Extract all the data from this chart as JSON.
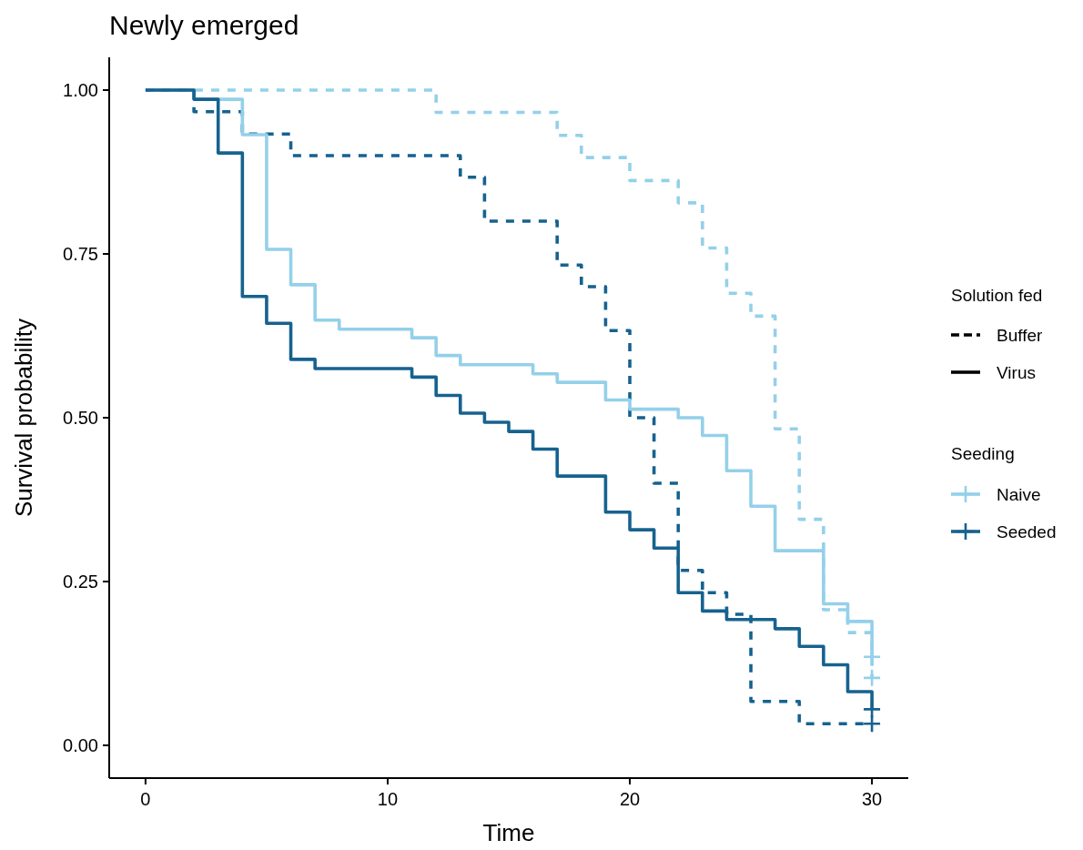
{
  "chart_data": {
    "type": "step",
    "title": "Newly emerged",
    "xlabel": "Time",
    "ylabel": "Survival probability",
    "legend_title": "Solution fed",
    "annotations": [
      "Buffer",
      "Virus",
      "Seeding"
    ],
    "legend": "right",
    "xlim": [
      -1.5,
      31.5
    ],
    "ylim": [
      -0.05,
      1.05
    ],
    "xticks": [
      0,
      10,
      20,
      30
    ],
    "yticks": [
      {
        "value": 0,
        "label": "0.00"
      },
      {
        "value": 0.25,
        "label": "0.25"
      },
      {
        "value": 0.5,
        "label": "0.50"
      },
      {
        "value": 0.75,
        "label": "0.75"
      },
      {
        "value": 1,
        "label": "1.00"
      }
    ],
    "grid": false,
    "series": [
      {
        "color": "#94d0ea",
        "line_style": "dashed",
        "x": [
          0,
          12,
          17,
          18,
          20,
          22,
          23,
          24,
          25,
          26,
          27,
          28,
          29,
          30
        ],
        "values": [
          1,
          0.966,
          0.931,
          0.897,
          0.862,
          0.828,
          0.759,
          0.69,
          0.655,
          0.483,
          0.345,
          0.207,
          0.172,
          0.103
        ]
      },
      {
        "color": "#16628f",
        "line_style": "dashed",
        "x": [
          0,
          2,
          4,
          6,
          13,
          14,
          17,
          18,
          19,
          20,
          21,
          22,
          23,
          24,
          25,
          27,
          30
        ],
        "values": [
          1,
          0.967,
          0.933,
          0.9,
          0.867,
          0.8,
          0.733,
          0.7,
          0.633,
          0.5,
          0.4,
          0.267,
          0.233,
          0.2,
          0.067,
          0.033,
          0.033
        ]
      },
      {
        "color": "#94d0ea",
        "line_style": "solid",
        "x": [
          0,
          2,
          4,
          5,
          6,
          7,
          8,
          11,
          12,
          13,
          16,
          17,
          19,
          20,
          22,
          23,
          24,
          25,
          26,
          28,
          29,
          30
        ],
        "values": [
          1,
          0.986,
          0.932,
          0.757,
          0.703,
          0.649,
          0.635,
          0.622,
          0.595,
          0.581,
          0.567,
          0.554,
          0.527,
          0.513,
          0.5,
          0.473,
          0.419,
          0.365,
          0.297,
          0.216,
          0.189,
          0.135
        ]
      },
      {
        "color": "#16628f",
        "line_style": "solid",
        "x": [
          0,
          2,
          3,
          4,
          5,
          6,
          7,
          11,
          12,
          13,
          14,
          15,
          16,
          17,
          19,
          20,
          21,
          22,
          23,
          24,
          26,
          27,
          28,
          29,
          30
        ],
        "values": [
          1,
          0.986,
          0.904,
          0.685,
          0.644,
          0.589,
          0.575,
          0.562,
          0.534,
          0.507,
          0.493,
          0.479,
          0.452,
          0.411,
          0.356,
          0.329,
          0.301,
          0.233,
          0.205,
          0.192,
          0.178,
          0.151,
          0.123,
          0.082,
          0.055
        ]
      },
      {
        "type": "scatter",
        "name": "Naive",
        "color": "#94d0ea",
        "marker": "cross",
        "x": [
          30,
          30
        ],
        "values": [
          0.135,
          0.103
        ]
      },
      {
        "type": "scatter",
        "name": "Seeded",
        "color": "#16628f",
        "marker": "cross",
        "x": [
          30,
          30
        ],
        "values": [
          0.055,
          0.033
        ]
      }
    ]
  }
}
